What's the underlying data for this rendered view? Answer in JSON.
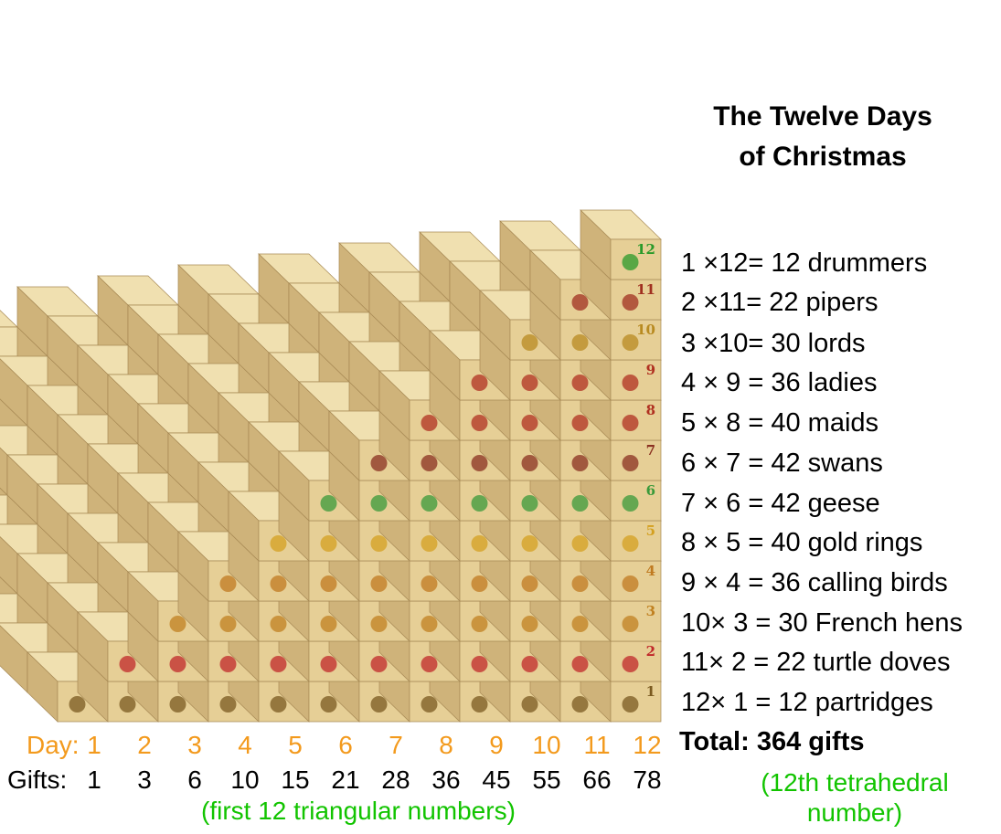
{
  "title_line1": "The Twelve Days",
  "title_line2": "of Christmas",
  "gift_lines": [
    "1 ×12= 12 drummers",
    "2 ×11= 22 pipers",
    "3 ×10= 30 lords",
    "4 × 9 = 36 ladies",
    "5 × 8 = 40 maids",
    "6 × 7 = 42 swans",
    "7 × 6 = 42 geese",
    "8 × 5 = 40 gold rings",
    "9 × 4 = 36 calling birds",
    "10× 3 = 30 French hens",
    "11× 2 = 22 turtle doves",
    "12× 1 = 12 partridges"
  ],
  "total_label": "Total: 364 gifts",
  "day_label": "Day:",
  "gifts_label": "Gifts:",
  "days": [
    "1",
    "2",
    "3",
    "4",
    "5",
    "6",
    "7",
    "8",
    "9",
    "10",
    "11",
    "12"
  ],
  "gifts": [
    "1",
    "3",
    "6",
    "10",
    "15",
    "21",
    "28",
    "36",
    "45",
    "55",
    "66",
    "78"
  ],
  "triangular_note": "(first 12 triangular numbers)",
  "tetrahedral_note_line1": "(12th tetrahedral",
  "tetrahedral_note_line2": "number)",
  "colors": {
    "day": "#f39a1d",
    "note": "#12c400",
    "block_front": "#e6cf96",
    "block_top": "#f0e0b0",
    "block_side": "#cfb37a"
  },
  "gift_icons": [
    {
      "level": 1,
      "icon": "partridge-in-pear-tree-icon",
      "color": "#7a5a20"
    },
    {
      "level": 2,
      "icon": "turtle-doves-heart-icon",
      "color": "#c0282a"
    },
    {
      "level": 3,
      "icon": "french-hen-icon",
      "color": "#c08020"
    },
    {
      "level": 4,
      "icon": "calling-birds-icon",
      "color": "#c07a20"
    },
    {
      "level": 5,
      "icon": "gold-rings-icon",
      "color": "#d4a020"
    },
    {
      "level": 6,
      "icon": "goose-icon",
      "color": "#3a9a3a"
    },
    {
      "level": 7,
      "icon": "swan-icon",
      "color": "#8a3020"
    },
    {
      "level": 8,
      "icon": "milkmaid-cow-icon",
      "color": "#b03020"
    },
    {
      "level": 9,
      "icon": "dancing-lady-icon",
      "color": "#b03020"
    },
    {
      "level": 10,
      "icon": "leaping-lord-icon",
      "color": "#b88a20"
    },
    {
      "level": 11,
      "icon": "piper-icon",
      "color": "#a03020"
    },
    {
      "level": 12,
      "icon": "drummer-icon",
      "color": "#2a9a2a"
    }
  ]
}
